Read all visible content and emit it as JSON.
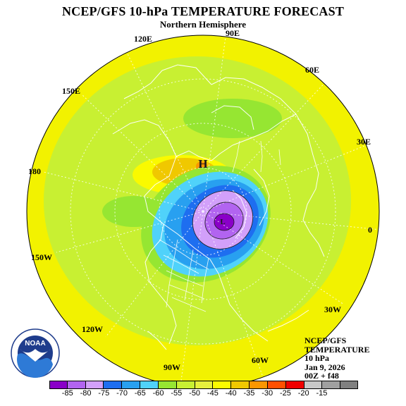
{
  "title": "NCEP/GFS 10-hPa TEMPERATURE FORECAST",
  "subtitle": "Northern Hemisphere",
  "longitude_labels": {
    "lon_90E": "90E",
    "lon_120E": "120E",
    "lon_60E": "60E",
    "lon_150E": "150E",
    "lon_30E": "30E",
    "lon_180": "180",
    "lon_0": "0",
    "lon_150W": "150W",
    "lon_30W": "30W",
    "lon_120W": "120W",
    "lon_90W": "90W",
    "lon_60W": "60W"
  },
  "map_markers": {
    "high": "H",
    "low": "L"
  },
  "info_box": {
    "line1": "NCEP/GFS",
    "line2": "TEMPERATURE",
    "line3": "10 hPa",
    "line4": "Jan 9, 2026",
    "line5": "00Z + f48"
  },
  "logo_text": "NOAA",
  "legend": {
    "colors": [
      "#8a00c8",
      "#b264f0",
      "#d2a0fa",
      "#1e6ef0",
      "#28a0f0",
      "#50d2fa",
      "#96e632",
      "#c8f032",
      "#e6f03c",
      "#fafa00",
      "#f0c800",
      "#fa9600",
      "#ff5000",
      "#f00000",
      "#c8c8c8",
      "#a0a0a0",
      "#808080"
    ],
    "labels": [
      "-85",
      "-80",
      "-75",
      "-70",
      "-65",
      "-60",
      "-55",
      "-50",
      "-45",
      "-40",
      "-35",
      "-30",
      "-25",
      "-20",
      "-15"
    ]
  }
}
